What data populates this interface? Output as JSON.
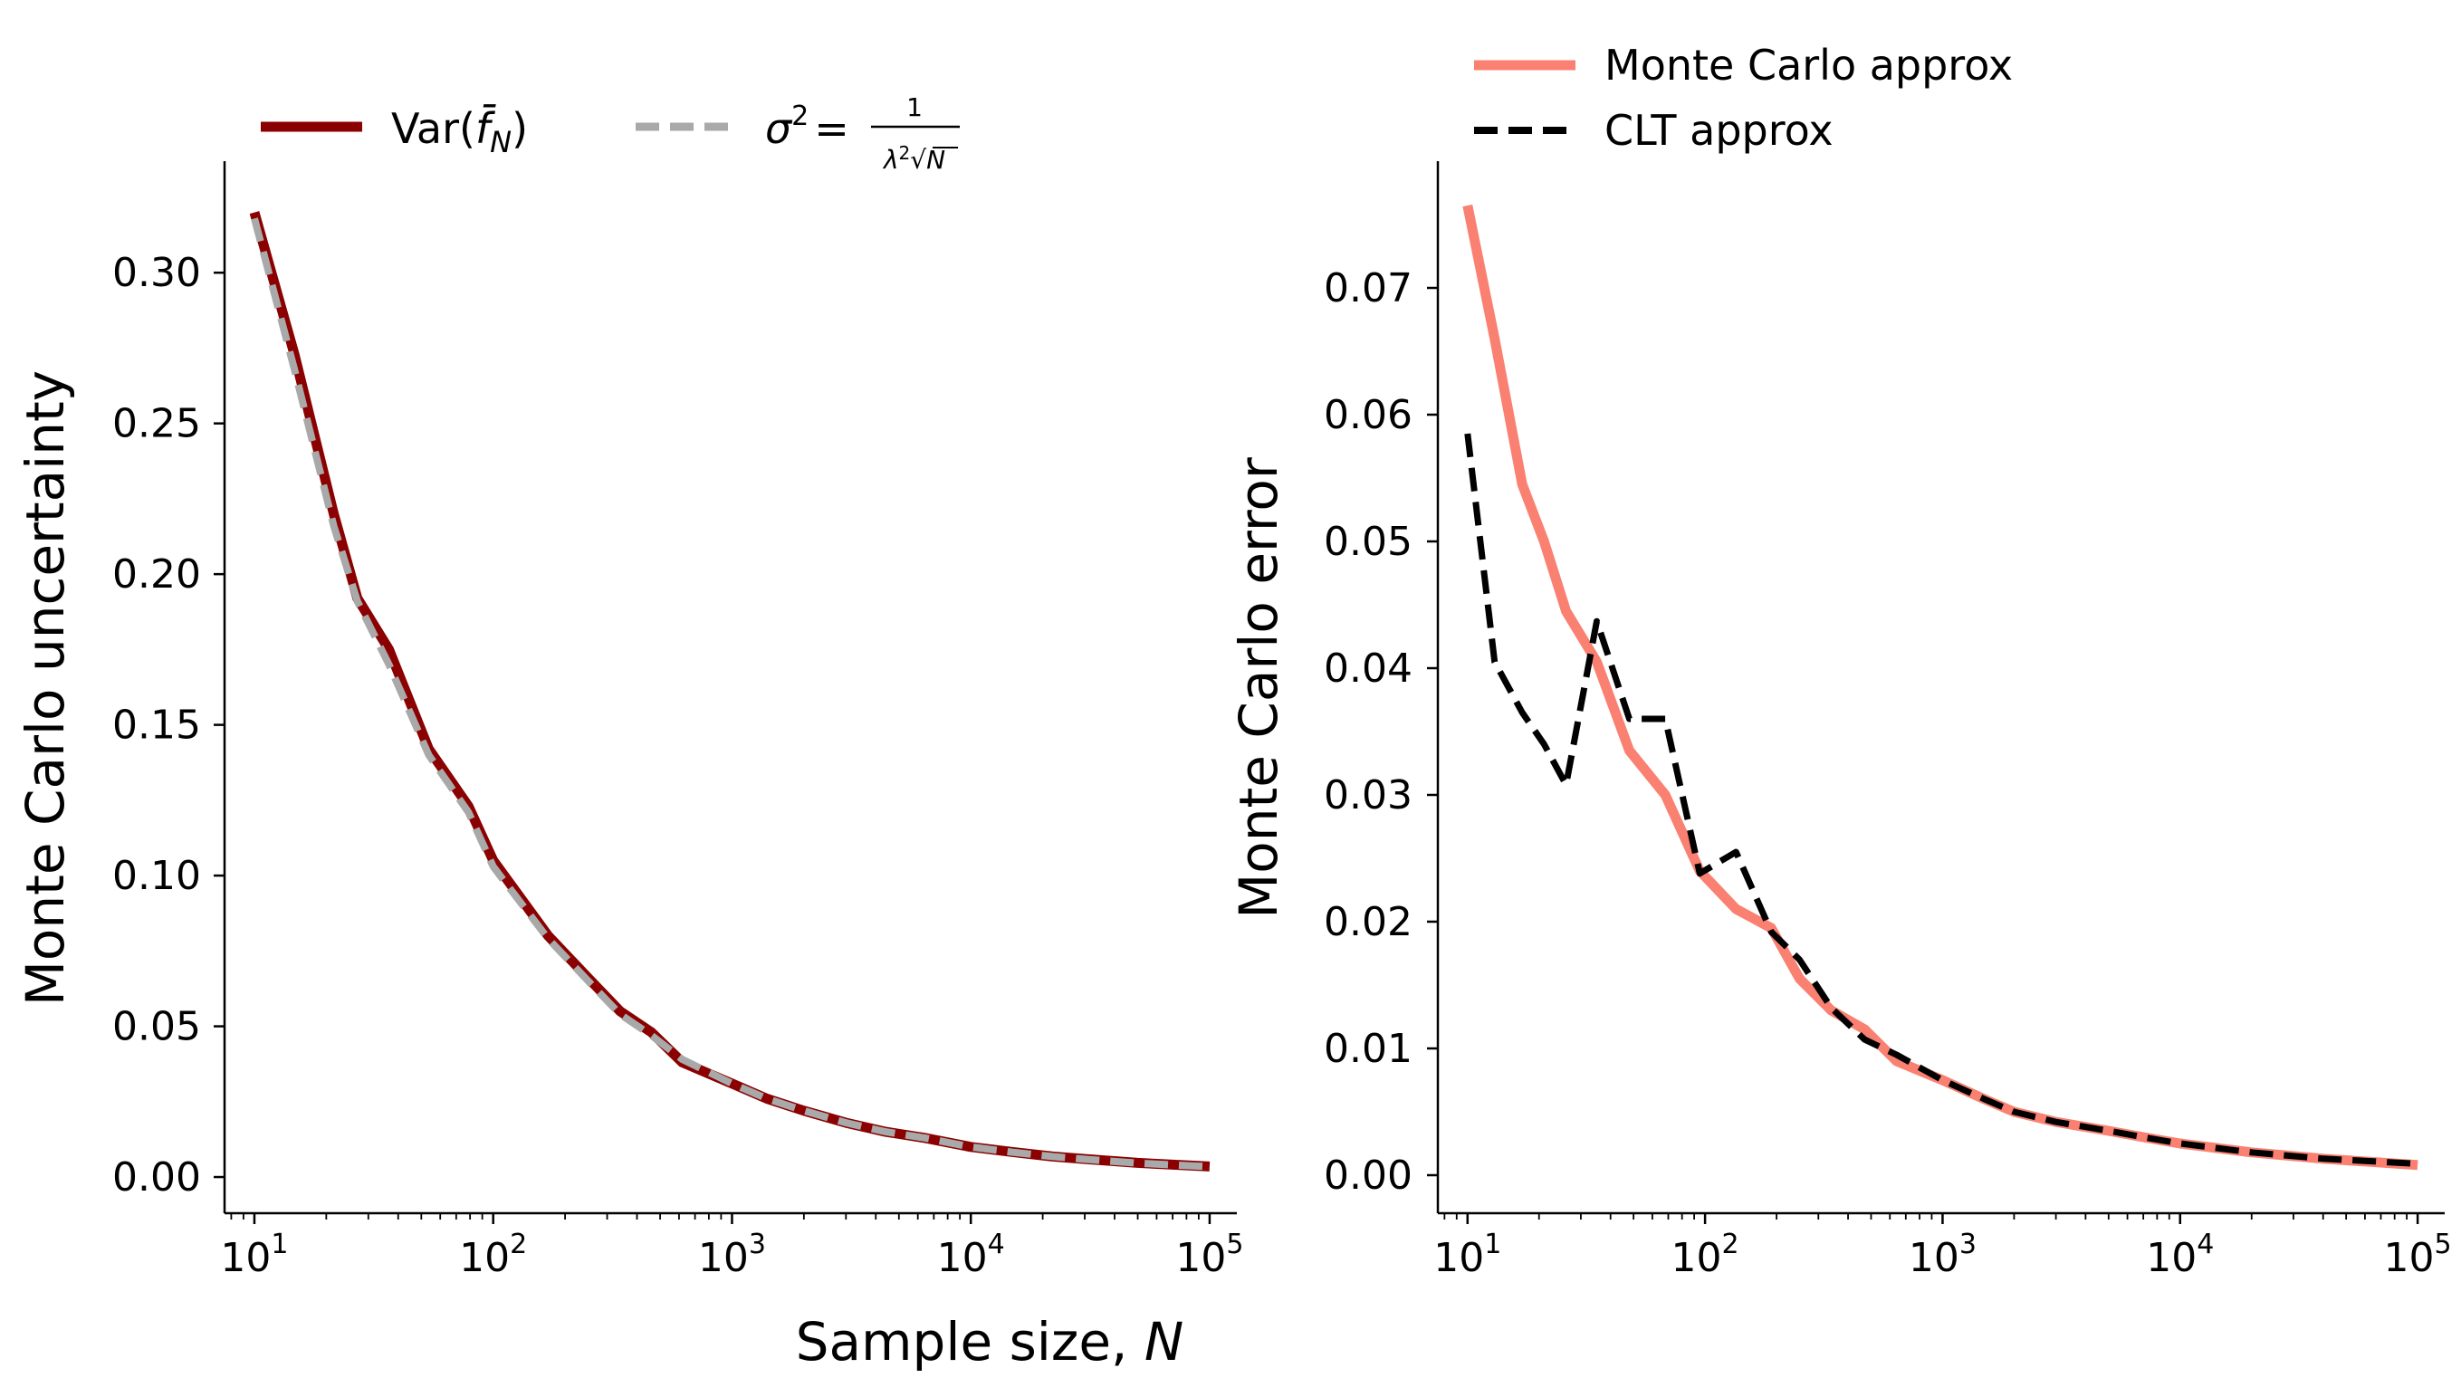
{
  "figure": {
    "xlabel": "Sample size, N"
  },
  "chart_data": [
    {
      "type": "line",
      "title": "",
      "xlabel": "",
      "ylabel": "Monte Carlo uncertainty",
      "xscale": "log",
      "xlim": [
        7.5,
        130000
      ],
      "ylim": [
        -0.012,
        0.337
      ],
      "yticks": [
        0.0,
        0.05,
        0.1,
        0.15,
        0.2,
        0.25,
        0.3
      ],
      "ytick_labels": [
        "0.00",
        "0.05",
        "0.10",
        "0.15",
        "0.20",
        "0.25",
        "0.30"
      ],
      "xticks": [
        10,
        100,
        1000,
        10000,
        100000
      ],
      "xtick_labels": [
        {
          "base": "10",
          "exp": "1"
        },
        {
          "base": "10",
          "exp": "2"
        },
        {
          "base": "10",
          "exp": "3"
        },
        {
          "base": "10",
          "exp": "4"
        },
        {
          "base": "10",
          "exp": "5"
        }
      ],
      "legend_position": "top",
      "series": [
        {
          "name": "Var(f̄_N)",
          "legend_parts": {
            "base": "Var(",
            "fbar": "f̄",
            "sub": "N",
            "close": ")"
          },
          "color": "#8b0000",
          "style": "solid",
          "x": [
            10,
            14.7,
            21.5,
            27,
            36.6,
            53.7,
            78.8,
            100,
            170,
            250,
            340,
            460,
            620,
            1000,
            1400,
            2000,
            3000,
            4400,
            6400,
            10000,
            15000,
            22000,
            30000,
            50000,
            100000
          ],
          "y": [
            0.32,
            0.273,
            0.22,
            0.192,
            0.175,
            0.142,
            0.123,
            0.105,
            0.08,
            0.066,
            0.055,
            0.048,
            0.038,
            0.031,
            0.026,
            0.022,
            0.018,
            0.015,
            0.013,
            0.01,
            0.0083,
            0.0068,
            0.006,
            0.0047,
            0.0035
          ]
        },
        {
          "name": "σ² = 1/(λ²√N)",
          "legend_parts": {
            "sigma": "σ",
            "sup": "2",
            "eq": "=",
            "num": "1",
            "den_lambda": "λ",
            "den_sup": "2",
            "den_sqrt": "√",
            "den_n": "N"
          },
          "color": "#a9a9a9",
          "style": "dashed",
          "x": [
            10,
            14.7,
            21.5,
            27,
            36.6,
            53.7,
            78.8,
            100,
            170,
            250,
            340,
            460,
            620,
            1000,
            1400,
            2000,
            3000,
            4400,
            6400,
            10000,
            15000,
            22000,
            30000,
            50000,
            100000
          ],
          "y": [
            0.318,
            0.268,
            0.216,
            0.191,
            0.17,
            0.14,
            0.121,
            0.103,
            0.079,
            0.065,
            0.054,
            0.047,
            0.039,
            0.031,
            0.026,
            0.022,
            0.018,
            0.015,
            0.013,
            0.01,
            0.0082,
            0.0068,
            0.0059,
            0.0046,
            0.0034
          ]
        }
      ]
    },
    {
      "type": "line",
      "title": "",
      "xlabel": "",
      "ylabel": "Monte Carlo error",
      "xscale": "log",
      "xlim": [
        7.5,
        130000
      ],
      "ylim": [
        -0.003,
        0.08
      ],
      "yticks": [
        0.0,
        0.01,
        0.02,
        0.03,
        0.04,
        0.05,
        0.06,
        0.07
      ],
      "ytick_labels": [
        "0.00",
        "0.01",
        "0.02",
        "0.03",
        "0.04",
        "0.05",
        "0.06",
        "0.07"
      ],
      "xticks": [
        10,
        100,
        1000,
        10000,
        100000
      ],
      "xtick_labels": [
        {
          "base": "10",
          "exp": "1"
        },
        {
          "base": "10",
          "exp": "2"
        },
        {
          "base": "10",
          "exp": "3"
        },
        {
          "base": "10",
          "exp": "4"
        },
        {
          "base": "10",
          "exp": "5"
        }
      ],
      "legend_position": "top",
      "series": [
        {
          "name": "Monte Carlo approx",
          "color": "#fa8072",
          "style": "solid",
          "x": [
            10,
            13,
            17,
            21,
            26,
            35,
            48,
            68,
            95,
            135,
            190,
            250,
            340,
            470,
            640,
            1000,
            1500,
            2000,
            3000,
            5000,
            7000,
            10000,
            20000,
            40000,
            100000
          ],
          "y": [
            0.0765,
            0.066,
            0.0545,
            0.05,
            0.0445,
            0.0405,
            0.0335,
            0.03,
            0.024,
            0.021,
            0.0195,
            0.0155,
            0.013,
            0.0115,
            0.009,
            0.0075,
            0.006,
            0.005,
            0.0042,
            0.0035,
            0.003,
            0.0025,
            0.0018,
            0.0013,
            0.0008
          ]
        },
        {
          "name": "CLT approx",
          "color": "#000000",
          "style": "dashed",
          "x": [
            10,
            13,
            17,
            21,
            26,
            35,
            48,
            68,
            95,
            135,
            190,
            250,
            340,
            470,
            640,
            1000,
            1500,
            2000,
            3000,
            5000,
            7000,
            10000,
            20000,
            40000,
            100000
          ],
          "y": [
            0.0585,
            0.0405,
            0.0365,
            0.034,
            0.0308,
            0.0437,
            0.036,
            0.036,
            0.0238,
            0.0255,
            0.0192,
            0.017,
            0.0132,
            0.0107,
            0.0095,
            0.0075,
            0.006,
            0.005,
            0.0042,
            0.0035,
            0.003,
            0.0025,
            0.0018,
            0.0013,
            0.0009
          ]
        }
      ]
    }
  ]
}
